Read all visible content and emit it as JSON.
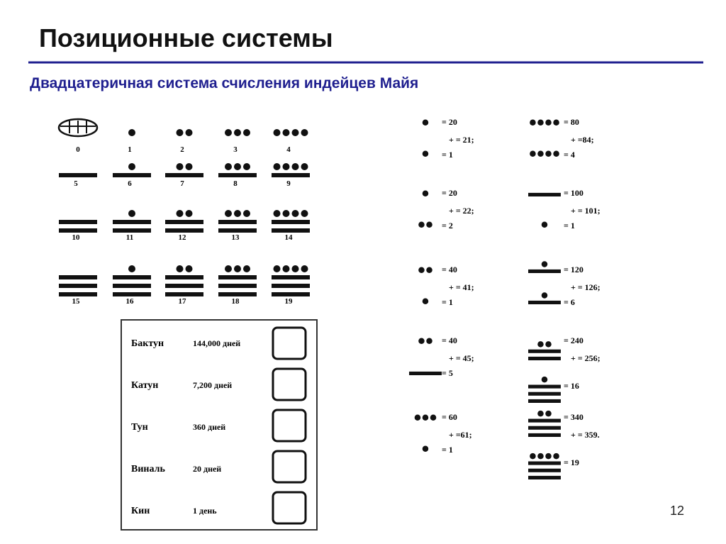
{
  "title": "Позиционные системы",
  "subtitle": "Двадцатеричная система счисления индейцев Майя",
  "digits": [
    0,
    1,
    2,
    3,
    4,
    5,
    6,
    7,
    8,
    9,
    10,
    11,
    12,
    13,
    14,
    15,
    16,
    17,
    18,
    19
  ],
  "examples": [
    {
      "upper_digit": 1,
      "upper": "= 20",
      "sum": "+ = 21;",
      "lower_digit": 1,
      "lower": "= 1"
    },
    {
      "upper_digit": 1,
      "upper": "= 20",
      "sum": "+ = 22;",
      "lower_digit": 2,
      "lower": "= 2"
    },
    {
      "upper_digit": 2,
      "upper": "= 40",
      "sum": "+ = 41;",
      "lower_digit": 1,
      "lower": "= 1"
    },
    {
      "upper_digit": 2,
      "upper": "= 40",
      "sum": "+ = 45;",
      "lower_digit": 5,
      "lower": "= 5"
    },
    {
      "upper_digit": 3,
      "upper": "= 60",
      "sum": "+ =61;",
      "lower_digit": 1,
      "lower": "= 1"
    },
    {
      "upper_digit": 4,
      "upper": "= 80",
      "sum": "+ =84;",
      "lower_digit": 4,
      "lower": "= 4"
    },
    {
      "upper_digit": 5,
      "upper": "= 100",
      "sum": "+ = 101;",
      "lower_digit": 1,
      "lower": "= 1"
    },
    {
      "upper_digit": 6,
      "upper": "= 120",
      "sum": "+ = 126;",
      "lower_digit": 6,
      "lower": "= 6"
    },
    {
      "upper_digit": 12,
      "upper": "= 240",
      "sum": "+ = 256;",
      "lower_digit": 16,
      "lower": "= 16"
    },
    {
      "upper_digit": 17,
      "upper": "= 340",
      "sum": "+ = 359.",
      "lower_digit": 19,
      "lower": "= 19"
    }
  ],
  "table": {
    "rows": [
      [
        "Бактун",
        "144,000 дней"
      ],
      [
        "Катун",
        "7,200 дней"
      ],
      [
        "Тун",
        "360 дней"
      ],
      [
        "Виналь",
        "20 дней"
      ],
      [
        "Кин",
        "1 день"
      ]
    ]
  },
  "page_number": "12"
}
